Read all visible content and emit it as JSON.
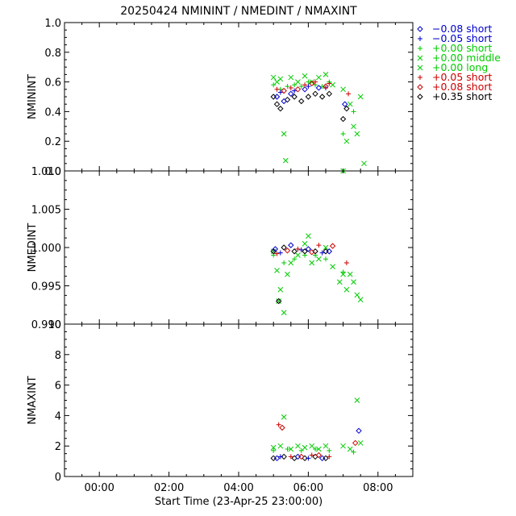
{
  "title": "20250424 NMININT / NMEDINT / NMAXINT",
  "colors": {
    "black": "#000000",
    "blue": "#0000cc",
    "green": "#00cc00",
    "red": "#cc0000"
  },
  "chart_data": {
    "type": "scatter",
    "xlabel": "Start Time (23-Apr-25 23:00:00)",
    "xlim_hours": [
      -1.0,
      9.0
    ],
    "x_tick_labels": [
      "00:00",
      "02:00",
      "04:00",
      "06:00",
      "08:00"
    ],
    "x_tick_hours": [
      0,
      2,
      4,
      6,
      8
    ],
    "legend": [
      {
        "symbol": "diamond",
        "color": "#0000cc",
        "label": "−0.08 short"
      },
      {
        "symbol": "plus",
        "color": "#0000cc",
        "label": "−0.05 short"
      },
      {
        "symbol": "plus",
        "color": "#00cc00",
        "label": "+0.00 short"
      },
      {
        "symbol": "x",
        "color": "#00cc00",
        "label": "+0.00 middle"
      },
      {
        "symbol": "x",
        "color": "#00cc00",
        "label": "+0.00 long"
      },
      {
        "symbol": "plus",
        "color": "#cc0000",
        "label": "+0.05 short"
      },
      {
        "symbol": "diamond",
        "color": "#cc0000",
        "label": "+0.08 short"
      },
      {
        "symbol": "diamond",
        "color": "#000000",
        "label": "+0.35 short"
      }
    ],
    "panels": [
      {
        "ylabel": "NMININT",
        "ylim": [
          0.0,
          1.0
        ],
        "y_ticks": [
          0.0,
          0.2,
          0.4,
          0.6,
          0.8,
          1.0
        ],
        "y_tick_labels": [
          "0.0",
          "0.2",
          "0.4",
          "0.6",
          "0.8",
          "1.0"
        ],
        "series": [
          {
            "symbol": "x",
            "color": "#00cc00",
            "points": [
              [
                5.0,
                0.63
              ],
              [
                5.1,
                0.6
              ],
              [
                5.2,
                0.62
              ],
              [
                5.3,
                0.25
              ],
              [
                5.35,
                0.07
              ],
              [
                5.5,
                0.63
              ],
              [
                5.7,
                0.6
              ],
              [
                5.9,
                0.64
              ],
              [
                6.1,
                0.6
              ],
              [
                6.3,
                0.63
              ],
              [
                6.5,
                0.65
              ],
              [
                6.7,
                0.58
              ],
              [
                7.0,
                0.55
              ],
              [
                7.1,
                0.2
              ],
              [
                7.2,
                0.45
              ],
              [
                7.3,
                0.3
              ],
              [
                7.4,
                0.25
              ],
              [
                7.5,
                0.5
              ],
              [
                7.6,
                0.05
              ],
              [
                7.0,
                0.0
              ]
            ]
          },
          {
            "symbol": "plus",
            "color": "#00cc00",
            "points": [
              [
                5.0,
                0.58
              ],
              [
                5.2,
                0.55
              ],
              [
                5.4,
                0.57
              ],
              [
                5.6,
                0.58
              ],
              [
                5.8,
                0.57
              ],
              [
                6.0,
                0.6
              ],
              [
                6.2,
                0.58
              ],
              [
                6.4,
                0.57
              ],
              [
                6.6,
                0.6
              ],
              [
                7.0,
                0.25
              ],
              [
                7.3,
                0.4
              ]
            ]
          },
          {
            "symbol": "diamond",
            "color": "#000000",
            "points": [
              [
                5.0,
                0.5
              ],
              [
                5.1,
                0.45
              ],
              [
                5.2,
                0.42
              ],
              [
                5.4,
                0.48
              ],
              [
                5.6,
                0.5
              ],
              [
                5.8,
                0.47
              ],
              [
                6.0,
                0.5
              ],
              [
                6.2,
                0.52
              ],
              [
                6.4,
                0.5
              ],
              [
                6.6,
                0.52
              ],
              [
                7.0,
                0.35
              ],
              [
                7.1,
                0.42
              ]
            ]
          },
          {
            "symbol": "diamond",
            "color": "#0000cc",
            "points": [
              [
                5.1,
                0.5
              ],
              [
                5.3,
                0.47
              ],
              [
                5.5,
                0.52
              ],
              [
                5.9,
                0.55
              ],
              [
                6.3,
                0.56
              ],
              [
                7.05,
                0.45
              ]
            ]
          },
          {
            "symbol": "plus",
            "color": "#0000cc",
            "points": [
              [
                5.2,
                0.53
              ],
              [
                5.6,
                0.54
              ],
              [
                6.0,
                0.57
              ],
              [
                6.5,
                0.56
              ]
            ]
          },
          {
            "symbol": "plus",
            "color": "#cc0000",
            "points": [
              [
                5.1,
                0.55
              ],
              [
                5.5,
                0.56
              ],
              [
                5.9,
                0.58
              ],
              [
                6.2,
                0.6
              ],
              [
                6.6,
                0.59
              ],
              [
                7.15,
                0.52
              ]
            ]
          },
          {
            "symbol": "diamond",
            "color": "#cc0000",
            "points": [
              [
                5.3,
                0.54
              ],
              [
                5.7,
                0.55
              ],
              [
                6.1,
                0.59
              ],
              [
                6.5,
                0.57
              ]
            ]
          }
        ]
      },
      {
        "ylabel": "NMEDINT",
        "ylim": [
          0.99,
          1.01
        ],
        "y_ticks": [
          0.99,
          0.995,
          1.0,
          1.005,
          1.01
        ],
        "y_tick_labels": [
          "0.990",
          "0.995",
          "1.000",
          "1.005",
          "1.010"
        ],
        "series": [
          {
            "symbol": "x",
            "color": "#00cc00",
            "points": [
              [
                5.0,
                0.9995
              ],
              [
                5.1,
                0.997
              ],
              [
                5.15,
                0.993
              ],
              [
                5.2,
                0.9945
              ],
              [
                5.3,
                0.9915
              ],
              [
                5.4,
                0.9965
              ],
              [
                5.5,
                0.998
              ],
              [
                5.7,
                0.999
              ],
              [
                5.9,
                1.0005
              ],
              [
                6.0,
                1.0015
              ],
              [
                6.1,
                0.998
              ],
              [
                6.3,
                0.9985
              ],
              [
                6.5,
                1.0
              ],
              [
                6.7,
                0.9975
              ],
              [
                6.9,
                0.9955
              ],
              [
                7.0,
                0.9965
              ],
              [
                7.1,
                0.9945
              ],
              [
                7.2,
                0.9965
              ],
              [
                7.3,
                0.9955
              ],
              [
                7.4,
                0.9938
              ],
              [
                7.5,
                0.9932
              ]
            ]
          },
          {
            "symbol": "plus",
            "color": "#00cc00",
            "points": [
              [
                5.0,
                0.999
              ],
              [
                5.3,
                0.998
              ],
              [
                5.6,
                0.9985
              ],
              [
                5.9,
                0.999
              ],
              [
                6.2,
                0.999
              ],
              [
                6.5,
                0.9985
              ],
              [
                7.0,
                0.9968
              ]
            ]
          },
          {
            "symbol": "diamond",
            "color": "#000000",
            "points": [
              [
                5.0,
                0.9995
              ],
              [
                5.3,
                1.0
              ],
              [
                5.6,
                0.9995
              ],
              [
                5.9,
                0.9995
              ],
              [
                6.2,
                0.9995
              ],
              [
                6.5,
                0.9995
              ],
              [
                5.15,
                0.993
              ]
            ]
          },
          {
            "symbol": "diamond",
            "color": "#0000cc",
            "points": [
              [
                5.05,
                0.9998
              ],
              [
                5.5,
                1.0003
              ],
              [
                6.0,
                0.9998
              ],
              [
                6.6,
                0.9995
              ]
            ]
          },
          {
            "symbol": "plus",
            "color": "#0000cc",
            "points": [
              [
                5.2,
                0.9993
              ],
              [
                5.8,
                0.9997
              ],
              [
                6.4,
                0.9993
              ]
            ]
          },
          {
            "symbol": "plus",
            "color": "#cc0000",
            "points": [
              [
                5.1,
                0.9992
              ],
              [
                5.7,
                0.9998
              ],
              [
                6.3,
                1.0003
              ],
              [
                7.1,
                0.998
              ]
            ]
          },
          {
            "symbol": "diamond",
            "color": "#cc0000",
            "points": [
              [
                5.4,
                0.9996
              ],
              [
                6.1,
                0.9994
              ],
              [
                6.7,
                1.0002
              ]
            ]
          }
        ]
      },
      {
        "ylabel": "NMAXINT",
        "ylim": [
          0,
          10
        ],
        "y_ticks": [
          0,
          2,
          4,
          6,
          8,
          10
        ],
        "y_tick_labels": [
          "0",
          "2",
          "4",
          "6",
          "8",
          "10"
        ],
        "series": [
          {
            "symbol": "x",
            "color": "#00cc00",
            "points": [
              [
                5.0,
                1.9
              ],
              [
                5.2,
                2.0
              ],
              [
                5.3,
                3.9
              ],
              [
                5.5,
                1.8
              ],
              [
                5.7,
                2.0
              ],
              [
                5.9,
                1.9
              ],
              [
                6.1,
                2.0
              ],
              [
                6.3,
                1.8
              ],
              [
                6.5,
                2.0
              ],
              [
                7.0,
                2.0
              ],
              [
                7.2,
                1.8
              ],
              [
                7.4,
                5.0
              ],
              [
                7.5,
                2.2
              ]
            ]
          },
          {
            "symbol": "plus",
            "color": "#00cc00",
            "points": [
              [
                5.0,
                1.7
              ],
              [
                5.4,
                1.8
              ],
              [
                5.8,
                1.7
              ],
              [
                6.2,
                1.8
              ],
              [
                6.6,
                1.7
              ],
              [
                7.3,
                1.6
              ]
            ]
          },
          {
            "symbol": "diamond",
            "color": "#000000",
            "points": [
              [
                5.0,
                1.2
              ],
              [
                5.3,
                1.3
              ],
              [
                5.6,
                1.2
              ],
              [
                5.9,
                1.2
              ],
              [
                6.2,
                1.3
              ],
              [
                6.5,
                1.2
              ]
            ]
          },
          {
            "symbol": "diamond",
            "color": "#0000cc",
            "points": [
              [
                5.1,
                1.2
              ],
              [
                5.7,
                1.3
              ],
              [
                6.4,
                1.2
              ],
              [
                7.45,
                3.0
              ]
            ]
          },
          {
            "symbol": "plus",
            "color": "#0000cc",
            "points": [
              [
                5.2,
                1.3
              ],
              [
                6.0,
                1.2
              ]
            ]
          },
          {
            "symbol": "plus",
            "color": "#cc0000",
            "points": [
              [
                5.15,
                3.4
              ],
              [
                5.5,
                1.3
              ],
              [
                6.1,
                1.4
              ],
              [
                6.6,
                1.3
              ]
            ]
          },
          {
            "symbol": "diamond",
            "color": "#cc0000",
            "points": [
              [
                5.25,
                3.2
              ],
              [
                5.8,
                1.3
              ],
              [
                6.3,
                1.4
              ],
              [
                7.35,
                2.2
              ]
            ]
          }
        ]
      }
    ]
  }
}
